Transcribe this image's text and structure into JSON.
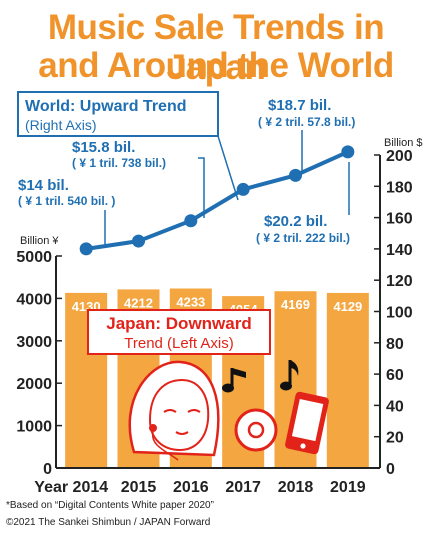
{
  "header": {
    "title_line1": "Music Sale Trends in Japan",
    "title_line2": "and Around the World"
  },
  "callouts": {
    "world_trend": "World: Upward Trend",
    "world_axis": "(Right Axis)",
    "japan_trend": "Japan: Downward",
    "japan_axis": "Trend (Left Axis)"
  },
  "annotations": [
    {
      "usd": "$14 bil.",
      "yen": "( ¥ 1 tril. 540 bil. )"
    },
    {
      "usd": "$15.8 bil.",
      "yen": "( ¥ 1 tril. 738 bil.)"
    },
    {
      "usd": "$18.7 bil.",
      "yen": "( ¥ 2 tril. 57.8 bil.)"
    },
    {
      "usd": "$20.2 bil.",
      "yen": "( ¥ 2 tril. 222 bil.)"
    }
  ],
  "footer": {
    "source": "*Based on “Digital Contents White paper 2020”",
    "credit": "©2021 The Sankei Shimbun / JAPAN Forward"
  },
  "colors": {
    "title": "#f0932b",
    "bar": "#f4a640",
    "bar_label": "#ffffff",
    "line": "#1f6fb2",
    "japan_callout": "#e2231a",
    "axis": "#222222"
  },
  "icons": [
    "woman-with-earphones-icon",
    "music-note-icon",
    "cd-icon",
    "smartphone-icon"
  ],
  "chart_data": {
    "type": "bar",
    "xlabel": "Year",
    "categories": [
      "2014",
      "2015",
      "2016",
      "2017",
      "2018",
      "2019"
    ],
    "series": [
      {
        "name": "Japan",
        "type": "bar",
        "axis": "left",
        "values": [
          4130,
          4212,
          4233,
          4054,
          4169,
          4129
        ]
      },
      {
        "name": "World",
        "type": "line",
        "axis": "right",
        "values": [
          140,
          145,
          158,
          178,
          187,
          202
        ]
      }
    ],
    "left_axis": {
      "label": "Billion ¥",
      "ylim": [
        0,
        5000
      ],
      "ticks": [
        0,
        1000,
        2000,
        3000,
        4000,
        5000
      ]
    },
    "right_axis": {
      "label": "Billion $",
      "ylim": [
        0,
        200
      ],
      "ticks": [
        0,
        20,
        40,
        60,
        80,
        100,
        120,
        140,
        160,
        180,
        200
      ]
    },
    "xticks": [
      "Year 2014",
      "2015",
      "2016",
      "2017",
      "2018",
      "2019"
    ],
    "grid": false
  }
}
